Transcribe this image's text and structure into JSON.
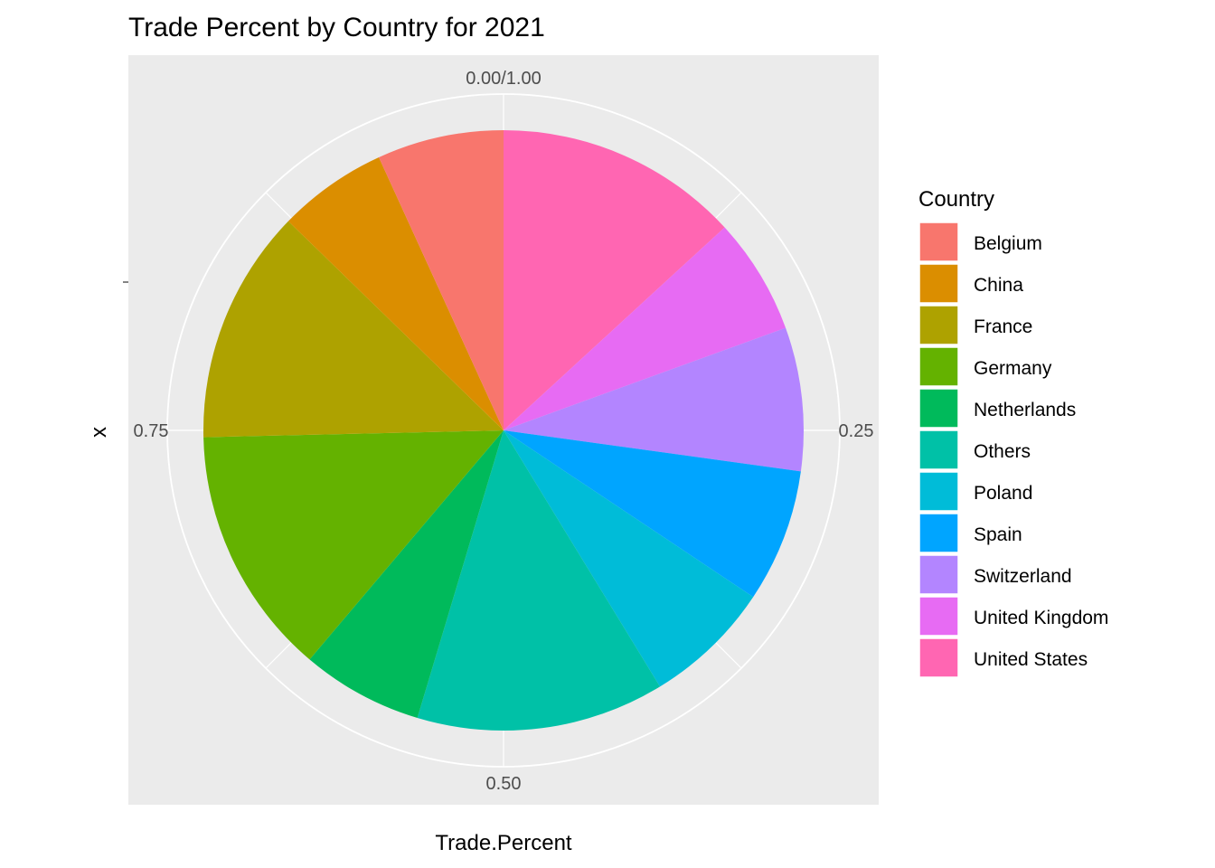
{
  "chart_data": {
    "type": "pie",
    "title": "Trade Percent by Country for 2021",
    "xlabel": "Trade.Percent",
    "ylabel": "x",
    "grid": true,
    "axis_ticks": [
      "0.00/1.00",
      "0.25",
      "0.50",
      "0.75"
    ],
    "axis_tick_values": [
      0,
      0.25,
      0.5,
      0.75
    ],
    "legend": {
      "title": "Country",
      "position": "right"
    },
    "slices": [
      {
        "label": "United States",
        "value": 0.145,
        "color": "#FF66B2"
      },
      {
        "label": "United Kingdom",
        "value": 0.069,
        "color": "#E76BF3"
      },
      {
        "label": "Switzerland",
        "value": 0.085,
        "color": "#B385FF"
      },
      {
        "label": "Spain",
        "value": 0.079,
        "color": "#00A5FF"
      },
      {
        "label": "Poland",
        "value": 0.076,
        "color": "#00BCD8"
      },
      {
        "label": "Others",
        "value": 0.147,
        "color": "#00C1A7"
      },
      {
        "label": "Netherlands",
        "value": 0.072,
        "color": "#00BA5B"
      },
      {
        "label": "Germany",
        "value": 0.148,
        "color": "#64B200"
      },
      {
        "label": "France",
        "value": 0.139,
        "color": "#AEA200"
      },
      {
        "label": "China",
        "value": 0.065,
        "color": "#DB8E00"
      },
      {
        "label": "Belgium",
        "value": 0.075,
        "color": "#F8766D"
      }
    ],
    "legend_order": [
      "Belgium",
      "China",
      "France",
      "Germany",
      "Netherlands",
      "Others",
      "Poland",
      "Spain",
      "Switzerland",
      "United Kingdom",
      "United States"
    ]
  }
}
